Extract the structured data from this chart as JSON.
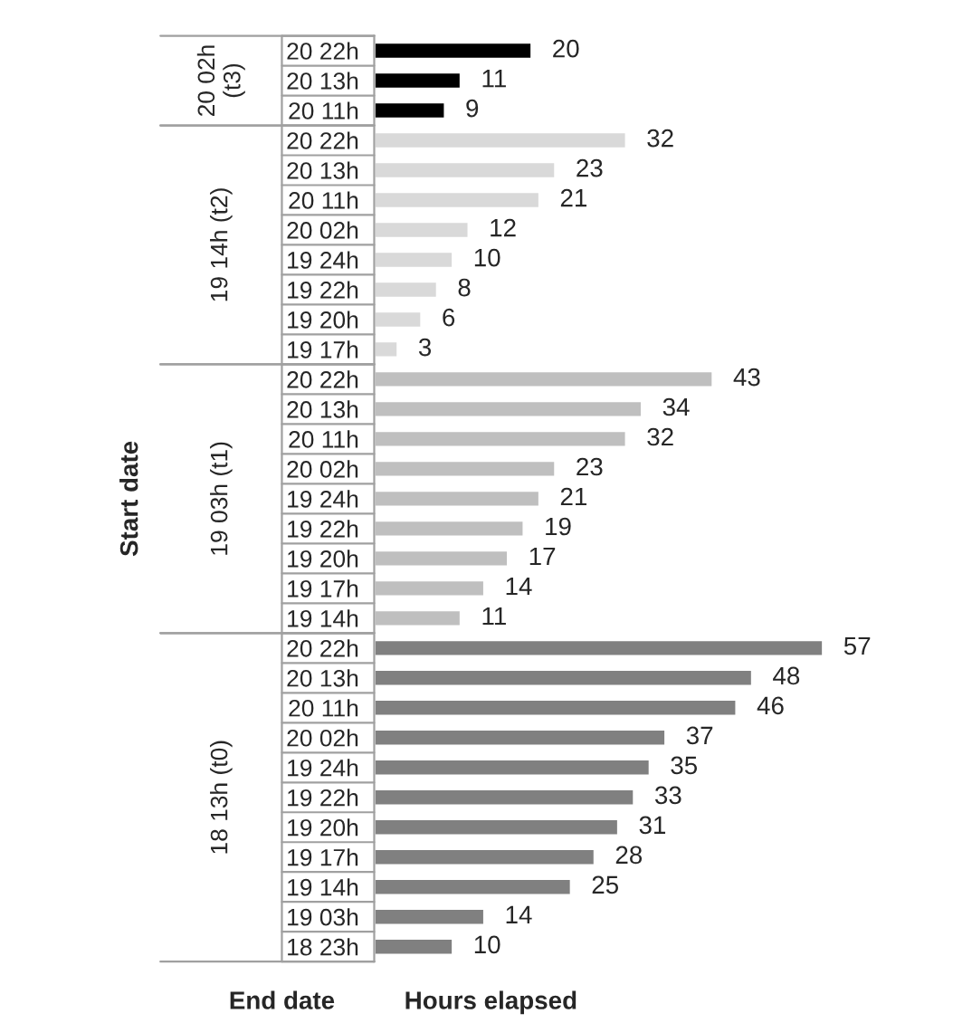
{
  "chart_data": {
    "type": "bar",
    "orientation": "horizontal",
    "xlabel": "Hours elapsed",
    "categories": [
      "20 22h",
      "20 13h",
      "20 11h",
      "20 22h",
      "20 13h",
      "20 11h",
      "20 02h",
      "19 24h",
      "19 22h",
      "19 20h",
      "19 17h",
      "20 22h",
      "20 13h",
      "20 11h",
      "20 02h",
      "19 24h",
      "19 22h",
      "19 20h",
      "19 17h",
      "19 14h",
      "20 22h",
      "20 13h",
      "20 11h",
      "20 02h",
      "19 24h",
      "19 22h",
      "19 20h",
      "19 17h",
      "19 14h",
      "19 03h",
      "18 23h"
    ],
    "series": [
      {
        "color": "#000000",
        "values": [
          20,
          11,
          9,
          null,
          null,
          null,
          null,
          null,
          null,
          null,
          null,
          null,
          null,
          null,
          null,
          null,
          null,
          null,
          null,
          null,
          null,
          null,
          null,
          null,
          null,
          null,
          null,
          null,
          null,
          null,
          null
        ]
      },
      {
        "color": "#d9d9d9",
        "values": [
          null,
          null,
          null,
          32,
          23,
          21,
          12,
          10,
          8,
          6,
          3,
          null,
          null,
          null,
          null,
          null,
          null,
          null,
          null,
          null,
          null,
          null,
          null,
          null,
          null,
          null,
          null,
          null,
          null,
          null,
          null
        ]
      },
      {
        "color": "#bfbfbf",
        "values": [
          null,
          null,
          null,
          null,
          null,
          null,
          null,
          null,
          null,
          null,
          null,
          43,
          34,
          32,
          23,
          21,
          19,
          17,
          14,
          11,
          null,
          null,
          null,
          null,
          null,
          null,
          null,
          null,
          null,
          null,
          null
        ]
      },
      {
        "color": "#808080",
        "values": [
          null,
          null,
          null,
          null,
          null,
          null,
          null,
          null,
          null,
          null,
          null,
          null,
          null,
          null,
          null,
          null,
          null,
          null,
          null,
          null,
          57,
          48,
          46,
          37,
          35,
          33,
          31,
          28,
          25,
          14,
          10
        ]
      }
    ],
    "annotations": [
      "20 02h (t3)",
      "19 14h (t2)",
      "19 03h (t1)",
      "18 13h (t0)",
      "End date",
      "Start date"
    ],
    "data_labels": true,
    "grid": false,
    "legend": false
  }
}
